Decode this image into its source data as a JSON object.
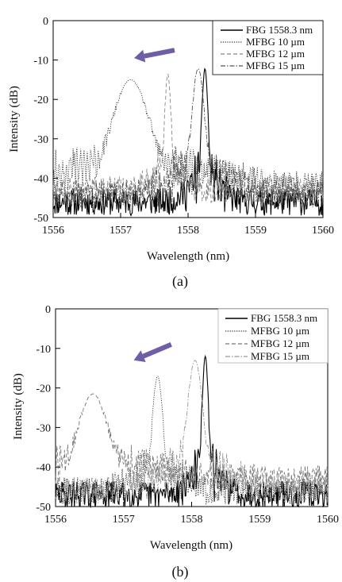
{
  "chart_data": [
    {
      "type": "line",
      "panel_label": "(a)",
      "xlabel": "Wavelength (nm)",
      "ylabel": "Intensity (dB)",
      "xlim": [
        1556,
        1560
      ],
      "ylim": [
        -50,
        0
      ],
      "x_ticks": [
        "1556",
        "1557",
        "1558",
        "1559",
        "1560"
      ],
      "y_ticks": [
        "0",
        "-10",
        "-20",
        "-30",
        "-40",
        "-50"
      ],
      "legend_position": "top-right",
      "arrow": {
        "from": [
          1557.8,
          -7.5
        ],
        "to": [
          1557.2,
          -9.5
        ],
        "color": "#6f5ea6"
      },
      "series": [
        {
          "name": "FBG 1558.3 nm",
          "style": "solid",
          "peak": [
            1558.25,
            -12.2
          ],
          "floor": -46,
          "width": 0.05,
          "color": "#000000"
        },
        {
          "name": "MFBG 10 µm",
          "style": "dotted",
          "peak": [
            1557.15,
            -15.0
          ],
          "floor": -42,
          "width": 0.28,
          "color": "#333333"
        },
        {
          "name": "MFBG 12 µm",
          "style": "dashed",
          "peak": [
            1557.7,
            -13.5
          ],
          "floor": -43,
          "width": 0.05,
          "color": "#888888"
        },
        {
          "name": "MFBG 15 µm",
          "style": "dashdot",
          "peak": [
            1558.15,
            -12.2
          ],
          "floor": -44,
          "width": 0.1,
          "color": "#555555"
        }
      ]
    },
    {
      "type": "line",
      "panel_label": "(b)",
      "xlabel": "Wavelength (nm)",
      "ylabel": "Intensity (dB)",
      "xlim": [
        1556,
        1560
      ],
      "ylim": [
        -50,
        0
      ],
      "x_ticks": [
        "1556",
        "1557",
        "1558",
        "1559",
        "1560"
      ],
      "y_ticks": [
        "0",
        "-10",
        "-20",
        "-30",
        "-40",
        "-50"
      ],
      "legend_position": "top-right",
      "arrow": {
        "from": [
          1557.7,
          -9.0
        ],
        "to": [
          1557.15,
          -13.0
        ],
        "color": "#6f5ea6"
      },
      "series": [
        {
          "name": "FBG 1558.3 nm",
          "style": "solid",
          "peak": [
            1558.2,
            -12.0
          ],
          "floor": -47,
          "width": 0.05,
          "color": "#000000"
        },
        {
          "name": "MFBG 10 µm",
          "style": "dotted",
          "peak": [
            1557.5,
            -17.0
          ],
          "floor": -46,
          "width": 0.08,
          "color": "#333333"
        },
        {
          "name": "MFBG 12 µm",
          "style": "dashed",
          "peak": [
            1556.55,
            -21.5
          ],
          "floor": -43,
          "width": 0.22,
          "color": "#777777"
        },
        {
          "name": "MFBG 15 µm",
          "style": "dashdot",
          "peak": [
            1558.05,
            -13.0
          ],
          "floor": -46,
          "width": 0.12,
          "color": "#999999"
        }
      ]
    }
  ]
}
